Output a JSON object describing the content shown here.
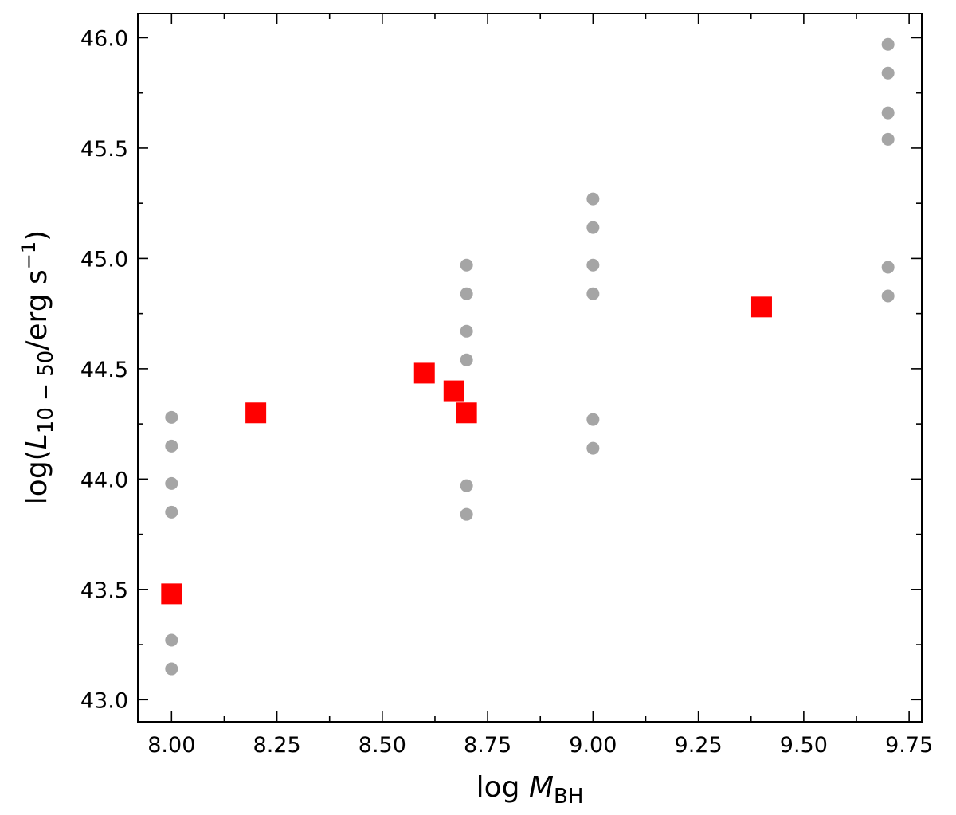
{
  "chart_data": {
    "type": "scatter",
    "xlabel": {
      "base": "log ",
      "var": "M",
      "sub": "BH"
    },
    "ylabel": {
      "pre": "log(",
      "var": "L",
      "sub": "10 − 50",
      "mid": "/erg s",
      "sup": "−1",
      "post": ")"
    },
    "xlim": [
      7.92,
      9.78
    ],
    "ylim": [
      42.9,
      46.11
    ],
    "xticks": [
      8.0,
      8.25,
      8.5,
      8.75,
      9.0,
      9.25,
      9.5,
      9.75
    ],
    "xtick_labels": [
      "8.00",
      "8.25",
      "8.50",
      "8.75",
      "9.00",
      "9.25",
      "9.50",
      "9.75"
    ],
    "yticks": [
      43.0,
      43.5,
      44.0,
      44.5,
      45.0,
      45.5,
      46.0
    ],
    "ytick_labels": [
      "43.0",
      "43.5",
      "44.0",
      "44.5",
      "45.0",
      "45.5",
      "46.0"
    ],
    "grid": false,
    "series": [
      {
        "marker": "circle",
        "color": "#a0a0a0",
        "points": [
          [
            8.0,
            44.28
          ],
          [
            8.0,
            44.15
          ],
          [
            8.0,
            43.98
          ],
          [
            8.0,
            43.85
          ],
          [
            8.0,
            43.27
          ],
          [
            8.0,
            43.14
          ],
          [
            8.7,
            44.97
          ],
          [
            8.7,
            44.84
          ],
          [
            8.7,
            44.67
          ],
          [
            8.7,
            44.54
          ],
          [
            8.7,
            43.97
          ],
          [
            8.7,
            43.84
          ],
          [
            9.0,
            45.27
          ],
          [
            9.0,
            45.14
          ],
          [
            9.0,
            44.97
          ],
          [
            9.0,
            44.84
          ],
          [
            9.0,
            44.27
          ],
          [
            9.0,
            44.14
          ],
          [
            9.7,
            45.97
          ],
          [
            9.7,
            45.84
          ],
          [
            9.7,
            45.66
          ],
          [
            9.7,
            45.54
          ],
          [
            9.7,
            44.96
          ],
          [
            9.7,
            44.83
          ]
        ]
      },
      {
        "marker": "square",
        "color": "#ff0000",
        "points": [
          [
            8.0,
            43.48
          ],
          [
            8.2,
            44.3
          ],
          [
            8.6,
            44.48
          ],
          [
            8.67,
            44.4
          ],
          [
            8.7,
            44.3
          ],
          [
            9.4,
            44.78
          ]
        ]
      }
    ]
  }
}
